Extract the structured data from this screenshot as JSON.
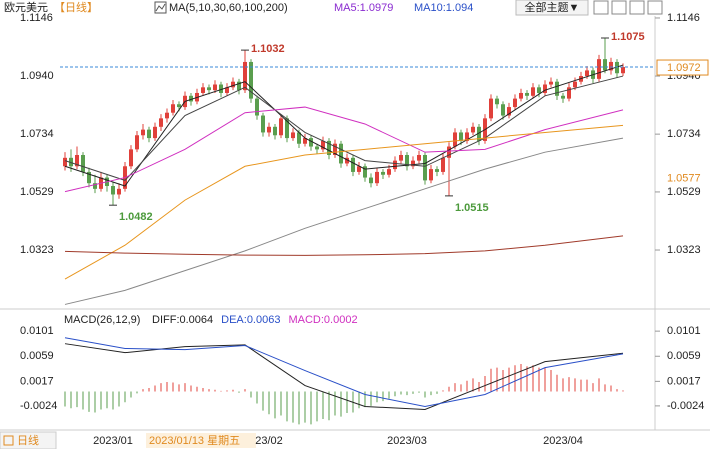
{
  "header": {
    "symbol": "欧元美元",
    "period": "【日线】",
    "ma_params": "MA(5,10,30,60,100,200)",
    "ma5": "MA5:1.0979",
    "ma10": "MA10:1.094",
    "theme_button": "全部主题▼"
  },
  "footer": {
    "tab": "日线",
    "cursor_date": "2023/01/13 星期五"
  },
  "chart_data": [
    {
      "type": "candlestick",
      "up_color": "#e0403a",
      "down_color": "#5a9e4e",
      "ylim": [
        1.0128,
        1.1192
      ],
      "yticks": [
        1.0323,
        1.0529,
        1.0734,
        {
          "value": 1.094,
          "label": "1.0940"
        },
        1.1146
      ],
      "categories": [
        null,
        null,
        null,
        null,
        null,
        null,
        null,
        null,
        "2023/01",
        null,
        null,
        null,
        null,
        null,
        null,
        null,
        null,
        null,
        null,
        null,
        null,
        null,
        null,
        null,
        null,
        null,
        null,
        null,
        null,
        null,
        null,
        null,
        null,
        null,
        "23/02",
        null,
        null,
        null,
        null,
        null,
        null,
        null,
        null,
        null,
        null,
        null,
        null,
        null,
        null,
        null,
        null,
        null,
        null,
        null,
        null,
        null,
        null,
        "2023/03",
        null,
        null,
        null,
        null,
        null,
        null,
        null,
        null,
        null,
        null,
        null,
        null,
        null,
        null,
        null,
        null,
        null,
        null,
        null,
        null,
        null,
        null,
        null,
        null,
        null,
        "2023/04",
        null,
        null,
        null,
        null,
        null,
        null,
        null,
        null,
        null,
        null
      ],
      "candles": [
        [
          1.062,
          1.067,
          1.0605,
          1.065
        ],
        [
          1.065,
          1.068,
          1.06,
          1.062
        ],
        [
          1.062,
          1.069,
          1.061,
          1.066
        ],
        [
          1.066,
          1.067,
          1.0585,
          1.06
        ],
        [
          1.06,
          1.0615,
          1.0545,
          1.056
        ],
        [
          1.056,
          1.059,
          1.0525,
          1.054
        ],
        [
          1.054,
          1.06,
          1.053,
          1.058
        ],
        [
          1.058,
          1.059,
          1.053,
          1.055
        ],
        [
          1.055,
          1.0565,
          1.0482,
          1.052
        ],
        [
          1.052,
          1.056,
          1.0505,
          1.054
        ],
        [
          1.054,
          1.0635,
          1.053,
          1.062
        ],
        [
          1.062,
          1.0695,
          1.061,
          1.068
        ],
        [
          1.068,
          1.0745,
          1.067,
          1.073
        ],
        [
          1.073,
          1.077,
          1.0715,
          1.075
        ],
        [
          1.075,
          1.076,
          1.0705,
          1.072
        ],
        [
          1.072,
          1.0775,
          1.071,
          1.076
        ],
        [
          1.076,
          1.0805,
          1.0745,
          1.079
        ],
        [
          1.079,
          1.0825,
          1.0775,
          1.081
        ],
        [
          1.081,
          1.0855,
          1.08,
          1.084
        ],
        [
          1.084,
          1.085,
          1.0815,
          1.083
        ],
        [
          1.083,
          1.0885,
          1.082,
          1.087
        ],
        [
          1.087,
          1.088,
          1.0835,
          1.085
        ],
        [
          1.085,
          1.0895,
          1.084,
          1.088
        ],
        [
          1.088,
          1.0915,
          1.087,
          1.09
        ],
        [
          1.09,
          1.091,
          1.0875,
          1.089
        ],
        [
          1.089,
          1.0925,
          1.088,
          1.091
        ],
        [
          1.091,
          1.092,
          1.0865,
          1.088
        ],
        [
          1.088,
          1.0915,
          1.087,
          1.09
        ],
        [
          1.09,
          1.0935,
          1.089,
          1.092
        ],
        [
          1.092,
          1.093,
          1.0875,
          1.089
        ],
        [
          1.089,
          1.1032,
          1.088,
          1.099
        ],
        [
          1.099,
          1.1,
          1.0845,
          1.086
        ],
        [
          1.086,
          1.087,
          1.0785,
          1.08
        ],
        [
          1.08,
          1.081,
          1.0725,
          1.074
        ],
        [
          1.074,
          1.0775,
          1.0725,
          1.076
        ],
        [
          1.076,
          1.077,
          1.0715,
          1.073
        ],
        [
          1.073,
          1.0805,
          1.072,
          1.079
        ],
        [
          1.079,
          1.08,
          1.0705,
          1.072
        ],
        [
          1.072,
          1.0755,
          1.071,
          1.074
        ],
        [
          1.074,
          1.075,
          1.0685,
          1.07
        ],
        [
          1.07,
          1.0735,
          1.069,
          1.072
        ],
        [
          1.072,
          1.073,
          1.0675,
          1.069
        ],
        [
          1.069,
          1.07,
          1.0665,
          1.068
        ],
        [
          1.068,
          1.0725,
          1.067,
          1.071
        ],
        [
          1.071,
          1.072,
          1.0645,
          1.066
        ],
        [
          1.066,
          1.0715,
          1.065,
          1.07
        ],
        [
          1.07,
          1.071,
          1.0615,
          1.063
        ],
        [
          1.063,
          1.0665,
          1.062,
          1.065
        ],
        [
          1.065,
          1.066,
          1.0585,
          1.06
        ],
        [
          1.06,
          1.0635,
          1.059,
          1.062
        ],
        [
          1.062,
          1.063,
          1.0565,
          1.058
        ],
        [
          1.058,
          1.0595,
          1.0545,
          1.056
        ],
        [
          1.056,
          1.0615,
          1.055,
          1.06
        ],
        [
          1.06,
          1.061,
          1.0575,
          1.059
        ],
        [
          1.059,
          1.0625,
          1.058,
          1.061
        ],
        [
          1.061,
          1.0655,
          1.06,
          1.064
        ],
        [
          1.064,
          1.0675,
          1.063,
          1.066
        ],
        [
          1.066,
          1.067,
          1.0605,
          1.062
        ],
        [
          1.062,
          1.0655,
          1.061,
          1.064
        ],
        [
          1.064,
          1.0675,
          1.063,
          1.066
        ],
        [
          1.066,
          1.067,
          1.0555,
          1.057
        ],
        [
          1.057,
          1.0625,
          1.056,
          1.061
        ],
        [
          1.061,
          1.062,
          1.0585,
          1.06
        ],
        [
          1.06,
          1.0665,
          1.059,
          1.065
        ],
        [
          1.065,
          1.0705,
          1.0515,
          1.069
        ],
        [
          1.069,
          1.0755,
          1.068,
          1.074
        ],
        [
          1.074,
          1.075,
          1.0695,
          1.071
        ],
        [
          1.071,
          1.0755,
          1.07,
          1.074
        ],
        [
          1.074,
          1.0775,
          1.073,
          1.076
        ],
        [
          1.076,
          1.077,
          1.0695,
          1.071
        ],
        [
          1.071,
          1.0805,
          1.07,
          1.079
        ],
        [
          1.079,
          1.0875,
          1.078,
          1.086
        ],
        [
          1.086,
          1.087,
          1.0825,
          1.084
        ],
        [
          1.084,
          1.085,
          1.0785,
          1.08
        ],
        [
          1.08,
          1.0845,
          1.079,
          1.083
        ],
        [
          1.083,
          1.0875,
          1.082,
          1.086
        ],
        [
          1.086,
          1.0895,
          1.085,
          1.088
        ],
        [
          1.088,
          1.089,
          1.0855,
          1.087
        ],
        [
          1.087,
          1.0915,
          1.086,
          1.09
        ],
        [
          1.09,
          1.091,
          1.0865,
          1.088
        ],
        [
          1.088,
          1.0925,
          1.087,
          1.091
        ],
        [
          1.091,
          1.0935,
          1.09,
          1.092
        ],
        [
          1.092,
          1.093,
          1.0855,
          1.087
        ],
        [
          1.087,
          1.088,
          1.0845,
          1.086
        ],
        [
          1.086,
          1.0915,
          1.085,
          1.09
        ],
        [
          1.09,
          1.0935,
          1.089,
          1.092
        ],
        [
          1.092,
          1.0955,
          1.091,
          1.094
        ],
        [
          1.094,
          1.0975,
          1.093,
          1.096
        ],
        [
          1.096,
          1.097,
          1.0915,
          1.093
        ],
        [
          1.093,
          1.1015,
          1.092,
          1.1
        ],
        [
          1.1,
          1.1075,
          1.095,
          1.096
        ],
        [
          1.096,
          1.1005,
          1.0945,
          1.099
        ],
        [
          1.099,
          1.1,
          1.0935,
          1.095
        ],
        [
          1.095,
          1.0985,
          1.094,
          1.0972
        ]
      ],
      "extreme_labels": [
        [
          30,
          1
        ],
        [
          8,
          2
        ],
        [
          64,
          2
        ],
        [
          90,
          1
        ]
      ],
      "high_label_color": "#c0392b",
      "low_label_color": "#4c9a3c",
      "last_price_line": true,
      "last_price_color": "#3a8ad8",
      "last_price_box_color": "#e08a20",
      "side_label": 1.0577,
      "side_label_color": "#e08a20",
      "x": [
        0,
        10,
        20,
        30,
        40,
        50,
        60,
        70,
        80,
        93
      ],
      "series": [
        {
          "color": "#222222",
          "values": [
            1.062,
            1.055,
            1.085,
            1.092,
            1.072,
            1.061,
            1.063,
            1.075,
            1.089,
            1.0979
          ]
        },
        {
          "color": "#444444",
          "values": [
            1.064,
            1.057,
            1.08,
            1.09,
            1.074,
            1.064,
            1.062,
            1.072,
            1.087,
            1.094
          ]
        },
        {
          "color": "#d030c0",
          "values": [
            1.053,
            1.058,
            1.068,
            1.081,
            1.083,
            1.077,
            1.067,
            1.068,
            1.075,
            1.082
          ]
        },
        {
          "color": "#e8961e",
          "values": [
            1.022,
            1.034,
            1.05,
            1.062,
            1.066,
            1.068,
            1.07,
            1.072,
            1.074,
            1.0765
          ]
        },
        {
          "color": "#888888",
          "values": [
            1.013,
            1.018,
            1.025,
            1.032,
            1.04,
            1.047,
            1.054,
            1.061,
            1.067,
            1.072
          ]
        },
        {
          "color": "#a03a2a",
          "values": [
            1.0318,
            1.0312,
            1.0308,
            1.0305,
            1.0304,
            1.0306,
            1.031,
            1.032,
            1.034,
            1.0373
          ]
        }
      ]
    },
    {
      "type": "macd",
      "title": "MACD(26,12,9)",
      "stats": [
        {
          "text": "DIFF:0.0064",
          "color": "#222222"
        },
        {
          "text": "DEA:0.0063",
          "color": "#2a50c8"
        },
        {
          "text": "MACD:0.0002",
          "color": "#d030c0"
        }
      ],
      "ylim": [
        -0.0061,
        0.0133
      ],
      "yticks": [
        -0.0024,
        0.0017,
        0.0059,
        0.0101
      ],
      "up_color": "#e0403a",
      "down_color": "#5a9e4e",
      "bars": [
        -0.0025,
        -0.0028,
        -0.0026,
        -0.003,
        -0.0034,
        -0.0035,
        -0.003,
        -0.0028,
        -0.003,
        -0.0025,
        -0.0018,
        -0.001,
        -0.0003,
        0.0004,
        0.0006,
        0.001,
        0.0014,
        0.0016,
        0.0015,
        0.0012,
        0.0014,
        0.001,
        0.0008,
        0.0006,
        0.0004,
        0.0003,
        0.0001,
        0.0002,
        0.0003,
        -0.0002,
        0.0004,
        -0.001,
        -0.002,
        -0.0032,
        -0.0038,
        -0.0045,
        -0.004,
        -0.005,
        -0.0052,
        -0.0055,
        -0.0052,
        -0.0055,
        -0.005,
        -0.0046,
        -0.0048,
        -0.004,
        -0.0042,
        -0.0036,
        -0.0035,
        -0.0028,
        -0.0026,
        -0.0024,
        -0.0018,
        -0.0016,
        -0.0012,
        -0.0008,
        -0.0005,
        -0.0006,
        -0.0004,
        -0.0002,
        -0.001,
        -0.0006,
        -0.0004,
        0.0002,
        0.0008,
        0.0014,
        0.0012,
        0.0018,
        0.0022,
        0.0016,
        0.0026,
        0.0038,
        0.004,
        0.0036,
        0.004,
        0.0044,
        0.0046,
        0.0042,
        0.0044,
        0.004,
        0.004,
        0.0036,
        0.0028,
        0.0022,
        0.0024,
        0.0022,
        0.002,
        0.002,
        0.0014,
        0.0022,
        0.0012,
        0.001,
        0.0004,
        0.0002
      ],
      "x": [
        0,
        10,
        20,
        30,
        40,
        50,
        60,
        70,
        80,
        93
      ],
      "series": [
        {
          "color": "#222222",
          "values": [
            0.008,
            0.0065,
            0.0075,
            0.0078,
            0.001,
            -0.0025,
            -0.003,
            0.001,
            0.005,
            0.0064
          ]
        },
        {
          "color": "#2a50c8",
          "values": [
            0.009,
            0.0072,
            0.007,
            0.0077,
            0.0035,
            -0.0005,
            -0.0025,
            -0.0005,
            0.004,
            0.0063
          ]
        }
      ]
    }
  ]
}
